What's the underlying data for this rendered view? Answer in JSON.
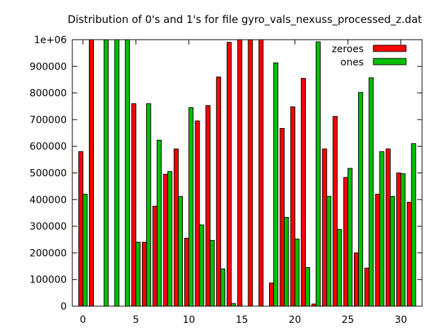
{
  "chart_data": {
    "type": "bar",
    "title": "Distribution of 0's and 1's for file gyro_vals_nexuss_processed_z.dat",
    "xlabel": "",
    "ylabel": "",
    "x": [
      0,
      1,
      2,
      3,
      4,
      5,
      6,
      7,
      8,
      9,
      10,
      11,
      12,
      13,
      14,
      15,
      16,
      17,
      18,
      19,
      20,
      21,
      22,
      23,
      24,
      25,
      26,
      27,
      28,
      29,
      30,
      31
    ],
    "xlim": [
      -1,
      32
    ],
    "ylim": [
      0,
      1000000
    ],
    "x_ticks": [
      0,
      5,
      10,
      15,
      20,
      25,
      30
    ],
    "y_ticks": [
      0,
      100000,
      200000,
      300000,
      400000,
      500000,
      600000,
      700000,
      800000,
      900000,
      1000000
    ],
    "x_tick_labels": [
      "0",
      "5",
      "10",
      "15",
      "20",
      "25",
      "30"
    ],
    "y_tick_labels": [
      "0",
      "100000",
      "200000",
      "300000",
      "400000",
      "500000",
      "600000",
      "700000",
      "800000",
      "900000",
      "1e+06"
    ],
    "grid": false,
    "legend_position": "top-right",
    "series": [
      {
        "name": "zeroes",
        "color": "#ff0000",
        "values": [
          580000,
          1000000,
          0,
          0,
          0,
          760000,
          240000,
          375000,
          495000,
          590000,
          255000,
          695000,
          753000,
          860000,
          990000,
          1000000,
          1000000,
          1000000,
          87000,
          667000,
          748000,
          855000,
          8000,
          590000,
          712000,
          483000,
          200000,
          143000,
          420000,
          590000,
          500000,
          390000
        ]
      },
      {
        "name": "ones",
        "color": "#00c000",
        "values": [
          420000,
          0,
          1000000,
          1000000,
          1000000,
          240000,
          760000,
          623000,
          505000,
          412000,
          745000,
          305000,
          247000,
          140000,
          10000,
          0,
          0,
          0,
          913000,
          333000,
          252000,
          145000,
          992000,
          412000,
          288000,
          517000,
          802000,
          857000,
          580000,
          412000,
          497000,
          610000
        ]
      }
    ]
  }
}
